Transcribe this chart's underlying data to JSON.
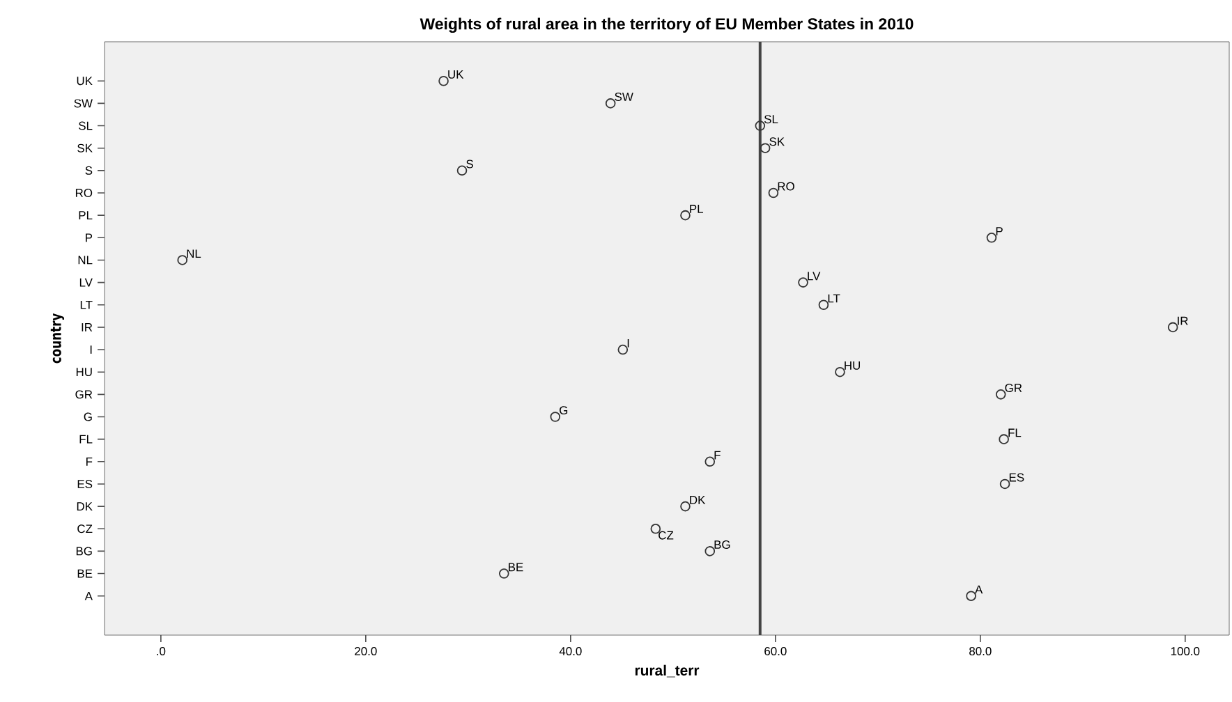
{
  "chart_data": {
    "type": "scatter",
    "title": "Weights of rural area in the territory of EU Member States in 2010",
    "xlabel": "rural_terr",
    "ylabel": "country",
    "orientation": "horizontal",
    "categories": [
      "UK",
      "SW",
      "SL",
      "SK",
      "S",
      "RO",
      "PL",
      "P",
      "NL",
      "LV",
      "LT",
      "IR",
      "I",
      "HU",
      "GR",
      "G",
      "FL",
      "F",
      "ES",
      "DK",
      "CZ",
      "BG",
      "BE",
      "A"
    ],
    "values": [
      27.6,
      43.9,
      58.5,
      59.0,
      29.4,
      59.8,
      51.2,
      81.1,
      2.1,
      62.7,
      64.7,
      98.8,
      45.1,
      66.3,
      82.0,
      38.5,
      82.3,
      53.6,
      82.4,
      51.2,
      48.3,
      53.6,
      33.5,
      79.1
    ],
    "value_labels": [
      "UK",
      "SW",
      "SL",
      "SK",
      "S",
      "RO",
      "PL",
      "P",
      "NL",
      "LV",
      "LT",
      "IR",
      "I",
      "HU",
      "GR",
      "G",
      "FL",
      "F",
      "ES",
      "DK",
      "CZ",
      "BG",
      "BE",
      "A"
    ],
    "color": "#333333",
    "marker": "circle",
    "grid": false,
    "xlim": [
      -5.5,
      104.3
    ],
    "xticks": [
      {
        "value": 0,
        "label": ".0"
      },
      {
        "value": 20,
        "label": "20.0"
      },
      {
        "value": 40,
        "label": "40.0"
      },
      {
        "value": 60,
        "label": "60.0"
      },
      {
        "value": 80,
        "label": "80.0"
      },
      {
        "value": 100,
        "label": "100.0"
      }
    ],
    "ref_lines": [
      {
        "axis": "x",
        "value": 58.5,
        "color": "#444444",
        "line_style": "solid"
      }
    ]
  }
}
